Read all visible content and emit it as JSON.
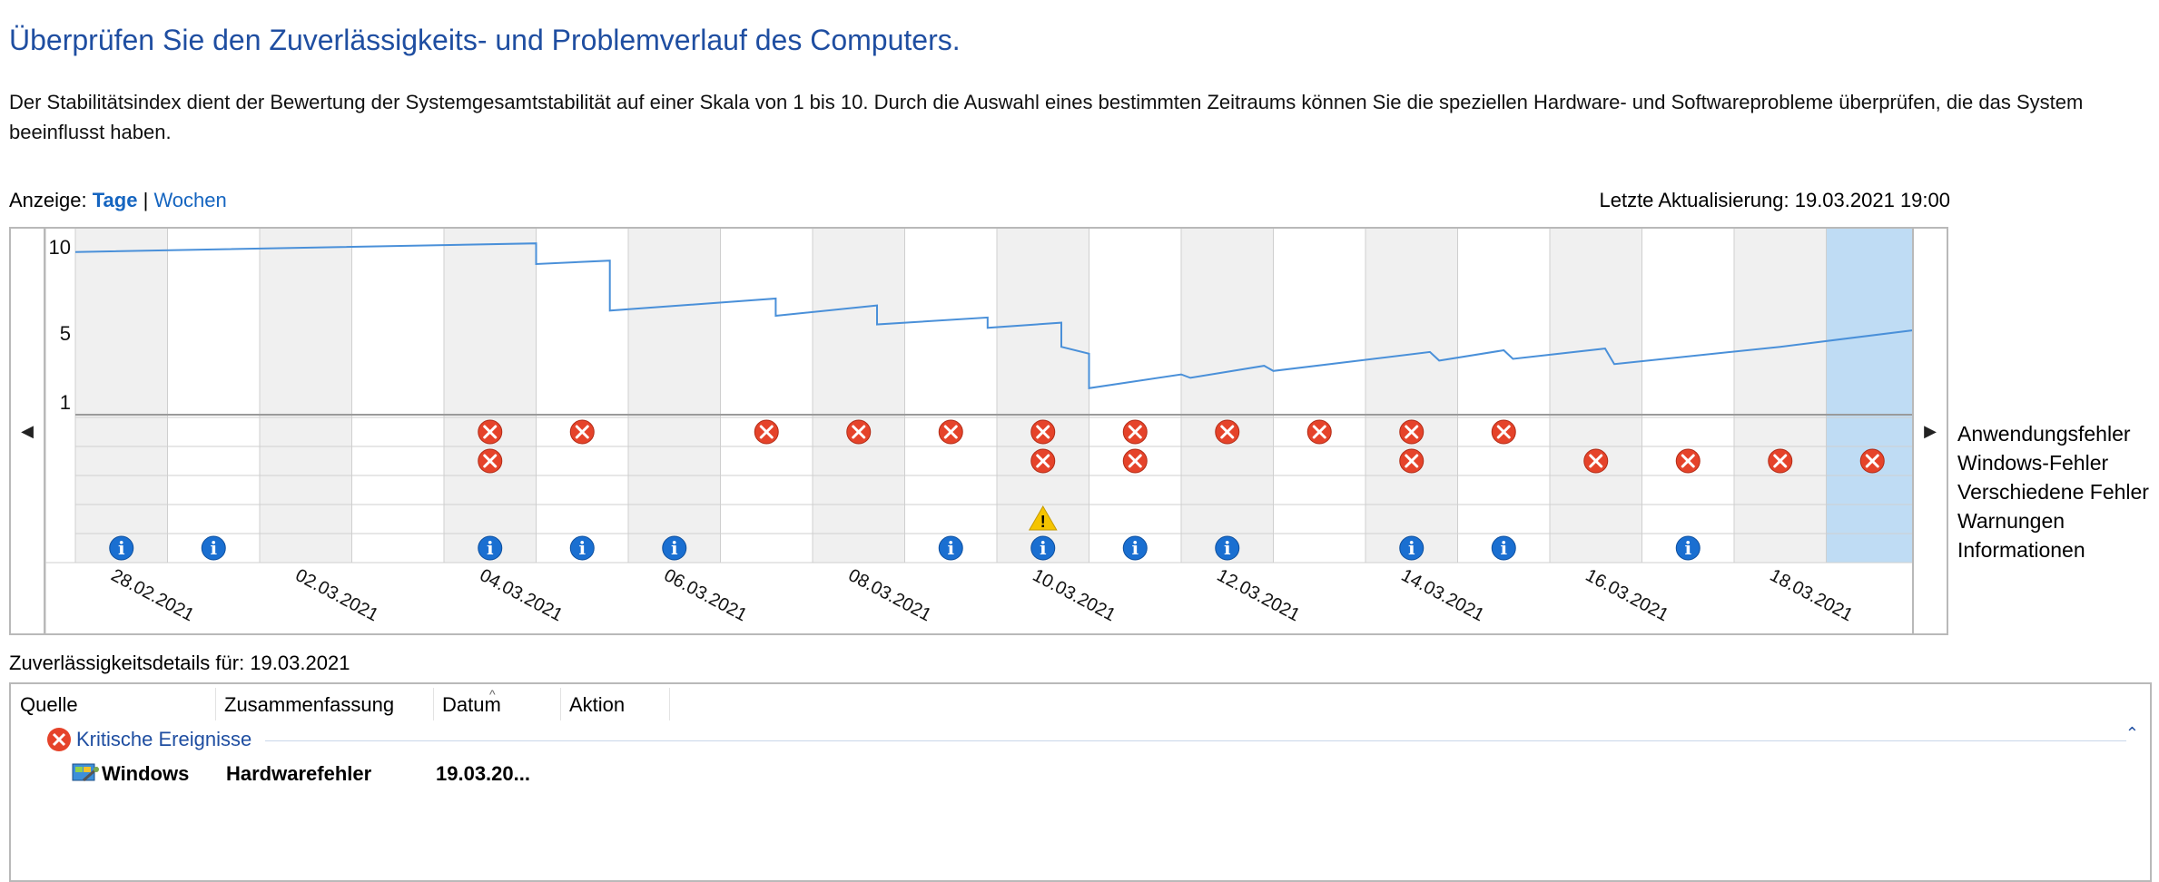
{
  "header": {
    "title": "Überprüfen Sie den Zuverlässigkeits- und Problemverlauf des Computers.",
    "description": "Der Stabilitätsindex dient der Bewertung der Systemgesamtstabilität auf einer Skala von 1 bis 10. Durch die Auswahl eines bestimmten Zeitraums können Sie die speziellen Hardware- und Softwareprobleme überprüfen, die das System beeinflusst haben."
  },
  "view": {
    "label": "Anzeige:",
    "days": "Tage",
    "separator": "|",
    "weeks": "Wochen"
  },
  "last_update": "Letzte Aktualisierung: 19.03.2021 19:00",
  "colors": {
    "accent": "#1565c0",
    "title": "#1f4ea1",
    "line": "#4a90d9",
    "error": "#e5432a",
    "warning": "#f5c400",
    "info": "#1a6fd1",
    "selected_column": "#bfdcf4",
    "shaded_column": "#f0f0f0"
  },
  "chart_data": {
    "type": "line",
    "yticks": [
      "10",
      "5",
      "1"
    ],
    "ylim": [
      1,
      10
    ],
    "days": 20,
    "selected_day_index": 19,
    "x_labels": [
      "28.02.2021",
      "02.03.2021",
      "04.03.2021",
      "06.03.2021",
      "08.03.2021",
      "10.03.2021",
      "12.03.2021",
      "14.03.2021",
      "16.03.2021",
      "18.03.2021"
    ],
    "stability_series": [
      [
        0,
        9.7
      ],
      [
        5.0,
        10.2
      ],
      [
        5.0,
        9.0
      ],
      [
        5.8,
        9.2
      ],
      [
        5.8,
        6.3
      ],
      [
        7.6,
        7.0
      ],
      [
        7.6,
        6.0
      ],
      [
        8.7,
        6.6
      ],
      [
        8.7,
        5.5
      ],
      [
        9.9,
        5.9
      ],
      [
        9.9,
        5.3
      ],
      [
        10.7,
        5.6
      ],
      [
        10.7,
        4.2
      ],
      [
        11.0,
        3.8
      ],
      [
        11.0,
        1.8
      ],
      [
        12.0,
        2.6
      ],
      [
        12.1,
        2.4
      ],
      [
        12.9,
        3.1
      ],
      [
        13.0,
        2.8
      ],
      [
        14.7,
        3.9
      ],
      [
        14.8,
        3.4
      ],
      [
        15.5,
        4.0
      ],
      [
        15.6,
        3.5
      ],
      [
        16.6,
        4.1
      ],
      [
        16.7,
        3.2
      ],
      [
        18.5,
        4.2
      ],
      [
        20.0,
        5.2
      ]
    ],
    "event_rows": [
      "Anwendungsfehler",
      "Windows-Fehler",
      "Verschiedene Fehler",
      "Warnungen",
      "Informationen"
    ],
    "events": {
      "application_errors": [
        4,
        5,
        7,
        8,
        9,
        10,
        11,
        12,
        13,
        14,
        15
      ],
      "windows_errors": [
        4,
        10,
        11,
        14,
        16,
        17,
        18,
        19
      ],
      "misc_errors": [],
      "warnings": [
        10
      ],
      "information": [
        0,
        1,
        4,
        5,
        6,
        9,
        10,
        11,
        12,
        14,
        15,
        17
      ]
    }
  },
  "details": {
    "label": "Zuverlässigkeitsdetails für: 19.03.2021",
    "columns": [
      "Quelle",
      "Zusammenfassung",
      "Datum",
      "Aktion"
    ],
    "group_label": "Kritische Ereignisse",
    "rows": [
      {
        "source": "Windows",
        "summary": "Hardwarefehler",
        "date": "19.03.20..."
      }
    ]
  }
}
